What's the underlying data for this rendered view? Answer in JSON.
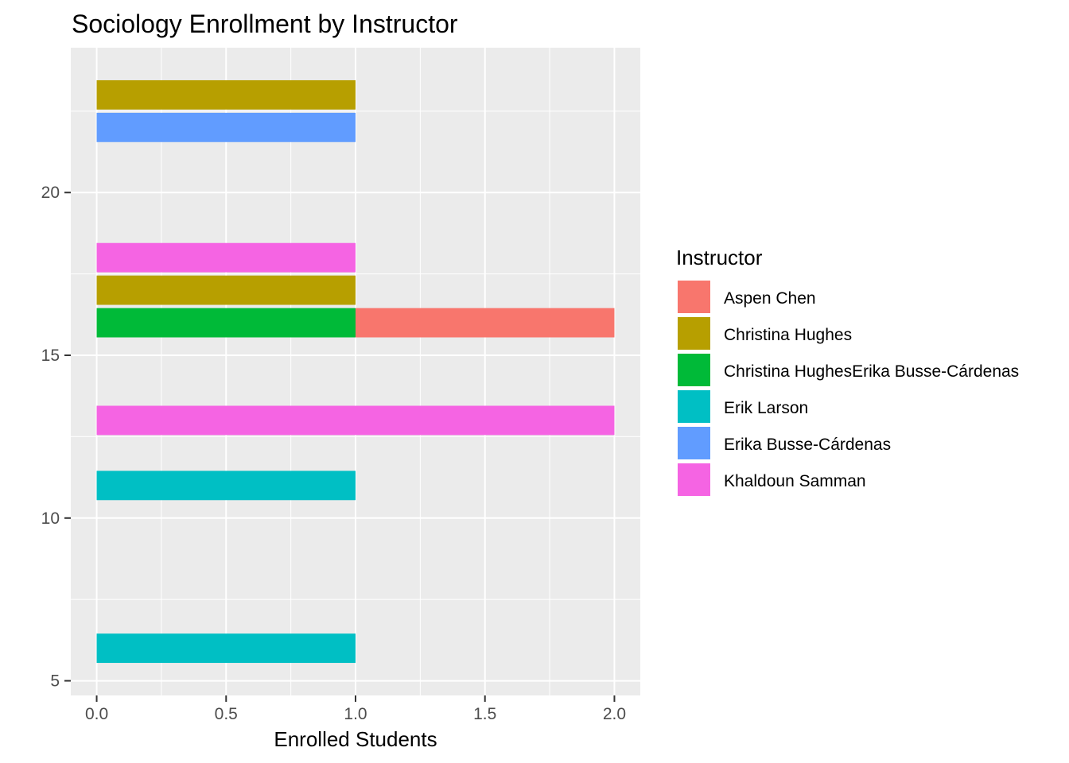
{
  "chart_data": {
    "type": "bar",
    "orientation": "horizontal",
    "stacked": true,
    "title": "Sociology Enrollment by Instructor",
    "xlabel": "Enrolled Students",
    "ylabel": "",
    "xlim": [
      -0.1,
      2.1
    ],
    "ylim": [
      4.55,
      24.45
    ],
    "x_ticks": [
      "0.0",
      "0.5",
      "1.0",
      "1.5",
      "2.0"
    ],
    "x_tick_values": [
      0,
      0.5,
      1.0,
      1.5,
      2.0
    ],
    "y_ticks": [
      "5",
      "10",
      "15",
      "20"
    ],
    "y_tick_values": [
      5,
      10,
      15,
      20
    ],
    "grid": true,
    "legend_position": "right",
    "legend_title": "Instructor",
    "bars": [
      {
        "y": 6,
        "instructor": "Erik Larson",
        "value": 1
      },
      {
        "y": 11,
        "instructor": "Erik Larson",
        "value": 1
      },
      {
        "y": 13,
        "instructor": "Khaldoun Samman",
        "value": 2
      },
      {
        "y": 16,
        "instructor": "Christina HughesErika Busse-Cárdenas",
        "value": 1
      },
      {
        "y": 16,
        "instructor": "Aspen Chen",
        "value": 1
      },
      {
        "y": 17,
        "instructor": "Christina Hughes",
        "value": 1
      },
      {
        "y": 18,
        "instructor": "Khaldoun Samman",
        "value": 1
      },
      {
        "y": 22,
        "instructor": "Erika Busse-Cárdenas",
        "value": 1
      },
      {
        "y": 23,
        "instructor": "Christina Hughes",
        "value": 1
      }
    ],
    "series": [
      {
        "name": "Aspen Chen",
        "color": "#F8766D"
      },
      {
        "name": "Christina Hughes",
        "color": "#B79F00"
      },
      {
        "name": "Christina HughesErika Busse-Cárdenas",
        "color": "#00BA38"
      },
      {
        "name": "Erik Larson",
        "color": "#00BFC4"
      },
      {
        "name": "Erika Busse-Cárdenas",
        "color": "#619CFF"
      },
      {
        "name": "Khaldoun Samman",
        "color": "#F564E3"
      }
    ]
  }
}
